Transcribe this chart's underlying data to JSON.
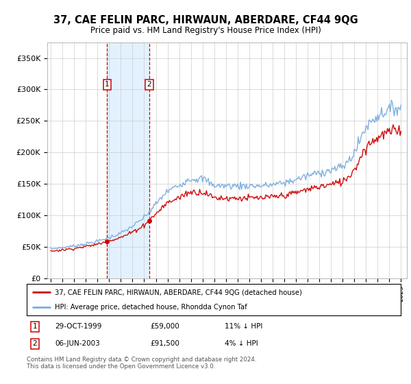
{
  "title": "37, CAE FELIN PARC, HIRWAUN, ABERDARE, CF44 9QG",
  "subtitle": "Price paid vs. HM Land Registry's House Price Index (HPI)",
  "legend_line1": "37, CAE FELIN PARC, HIRWAUN, ABERDARE, CF44 9QG (detached house)",
  "legend_line2": "HPI: Average price, detached house, Rhondda Cynon Taf",
  "transaction1_date": "29-OCT-1999",
  "transaction1_price": "£59,000",
  "transaction1_hpi": "11% ↓ HPI",
  "transaction2_date": "06-JUN-2003",
  "transaction2_price": "£91,500",
  "transaction2_hpi": "4% ↓ HPI",
  "footnote": "Contains HM Land Registry data © Crown copyright and database right 2024.\nThis data is licensed under the Open Government Licence v3.0.",
  "price_color": "#cc0000",
  "hpi_color": "#7aacdc",
  "highlight_color": "#ddeeff",
  "vline_color": "#cc0000",
  "transaction1_x": 1999.83,
  "transaction2_x": 2003.43,
  "ylim_min": 0,
  "ylim_max": 375000,
  "xlim_min": 1994.7,
  "xlim_max": 2025.5,
  "yticks": [
    0,
    50000,
    100000,
    150000,
    200000,
    250000,
    300000,
    350000
  ],
  "ytick_labels": [
    "£0",
    "£50K",
    "£100K",
    "£150K",
    "£200K",
    "£250K",
    "£300K",
    "£350K"
  ],
  "xticks": [
    1995,
    1996,
    1997,
    1998,
    1999,
    2000,
    2001,
    2002,
    2003,
    2004,
    2005,
    2006,
    2007,
    2008,
    2009,
    2010,
    2011,
    2012,
    2013,
    2014,
    2015,
    2016,
    2017,
    2018,
    2019,
    2020,
    2021,
    2022,
    2023,
    2024,
    2025
  ]
}
